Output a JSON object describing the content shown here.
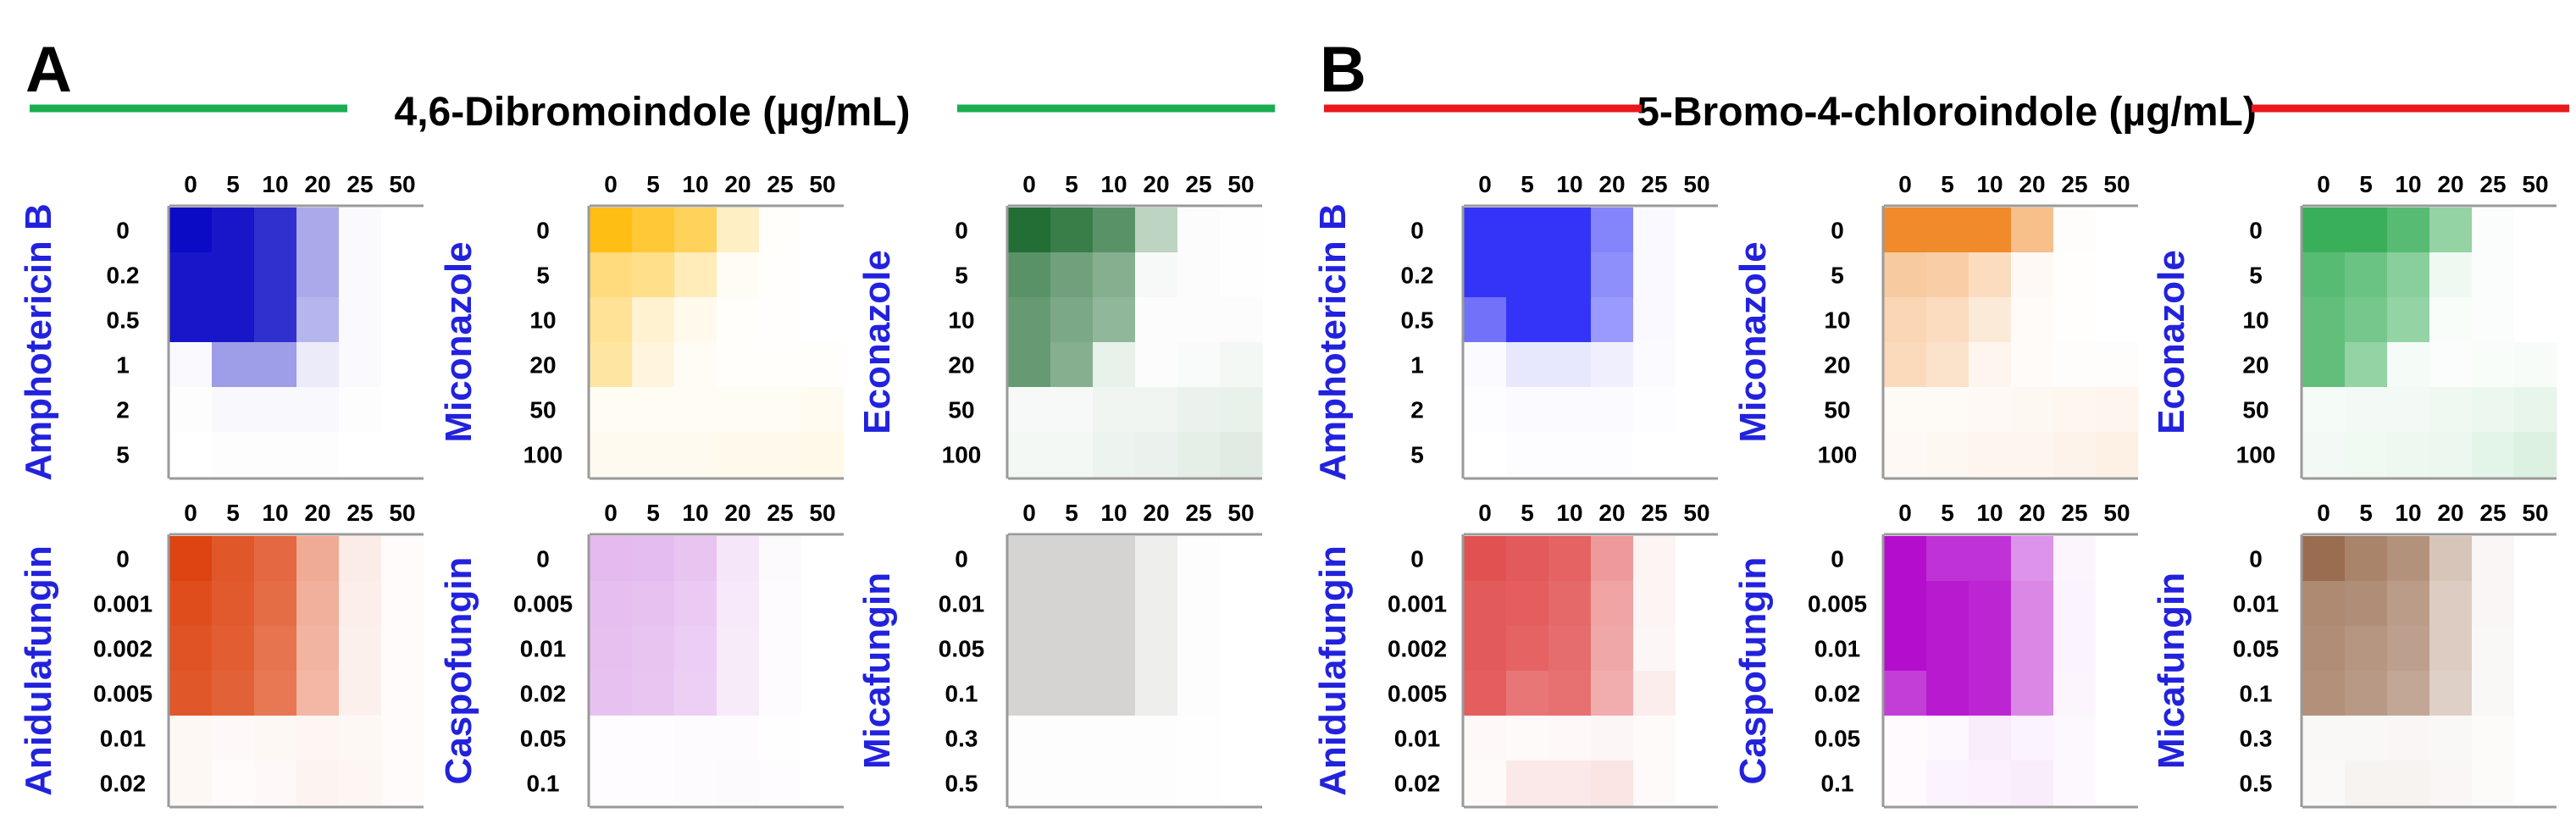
{
  "panels": [
    {
      "letter": "A",
      "compound": "4,6-Dibromoindole (µg/mL)",
      "rule_color": "#1aae50",
      "columns": [
        "0",
        "5",
        "10",
        "20",
        "25",
        "50"
      ],
      "charts": [
        {
          "drug": "Amphotericin B",
          "rows": [
            "0",
            "0.2",
            "0.5",
            "1",
            "2",
            "5"
          ],
          "color": "#0b0bc6",
          "values": [
            [
              1,
              0.95,
              0.85,
              0.35,
              0.02,
              0
            ],
            [
              0.95,
              0.95,
              0.85,
              0.35,
              0.02,
              0
            ],
            [
              0.95,
              0.95,
              0.85,
              0.3,
              0.02,
              0
            ],
            [
              0.02,
              0.4,
              0.4,
              0.08,
              0.02,
              0
            ],
            [
              0.01,
              0.03,
              0.03,
              0.03,
              0.01,
              0
            ],
            [
              0,
              0.01,
              0.01,
              0.01,
              0,
              0
            ]
          ]
        },
        {
          "drug": "Miconazole",
          "rows": [
            "0",
            "5",
            "10",
            "20",
            "50",
            "100"
          ],
          "color": "#ffbe14",
          "values": [
            [
              1,
              0.85,
              0.7,
              0.25,
              0.02,
              0
            ],
            [
              0.55,
              0.5,
              0.3,
              0.05,
              0.01,
              0
            ],
            [
              0.45,
              0.2,
              0.08,
              0.02,
              0.01,
              0
            ],
            [
              0.4,
              0.15,
              0.04,
              0.02,
              0.02,
              0.02
            ],
            [
              0.05,
              0.05,
              0.05,
              0.05,
              0.05,
              0.06
            ],
            [
              0.07,
              0.07,
              0.07,
              0.08,
              0.08,
              0.09
            ]
          ]
        },
        {
          "drug": "Econazole",
          "rows": [
            "0",
            "5",
            "10",
            "20",
            "50",
            "100"
          ],
          "color": "#236e35",
          "values": [
            [
              1,
              0.9,
              0.75,
              0.3,
              0.02,
              0.01
            ],
            [
              0.75,
              0.65,
              0.55,
              0.04,
              0.02,
              0.01
            ],
            [
              0.7,
              0.6,
              0.5,
              0.02,
              0.02,
              0.02
            ],
            [
              0.7,
              0.55,
              0.1,
              0.02,
              0.03,
              0.05
            ],
            [
              0.04,
              0.04,
              0.07,
              0.07,
              0.09,
              0.1
            ],
            [
              0.05,
              0.05,
              0.08,
              0.09,
              0.12,
              0.14
            ]
          ]
        },
        {
          "drug": "Anidulafungin",
          "rows": [
            "0",
            "0.001",
            "0.002",
            "0.005",
            "0.01",
            "0.02"
          ],
          "color": "#dd4411",
          "values": [
            [
              1,
              0.9,
              0.8,
              0.45,
              0.1,
              0.02
            ],
            [
              0.95,
              0.88,
              0.78,
              0.42,
              0.09,
              0.02
            ],
            [
              0.92,
              0.86,
              0.74,
              0.4,
              0.08,
              0.02
            ],
            [
              0.9,
              0.84,
              0.72,
              0.38,
              0.08,
              0.02
            ],
            [
              0.04,
              0.03,
              0.04,
              0.05,
              0.04,
              0.02
            ],
            [
              0.04,
              0.02,
              0.03,
              0.06,
              0.05,
              0.02
            ]
          ]
        },
        {
          "drug": "Caspofungin",
          "rows": [
            "0",
            "0.005",
            "0.01",
            "0.02",
            "0.05",
            "0.1"
          ],
          "color": "#d99ce8",
          "values": [
            [
              0.7,
              0.68,
              0.6,
              0.25,
              0.05,
              0
            ],
            [
              0.66,
              0.62,
              0.55,
              0.22,
              0.04,
              0
            ],
            [
              0.64,
              0.6,
              0.5,
              0.2,
              0.04,
              0
            ],
            [
              0.62,
              0.58,
              0.48,
              0.2,
              0.04,
              0
            ],
            [
              0.03,
              0.03,
              0.04,
              0.04,
              0.02,
              0
            ],
            [
              0.03,
              0.03,
              0.04,
              0.05,
              0.03,
              0
            ]
          ]
        },
        {
          "drug": "Micafungin",
          "rows": [
            "0",
            "0.01",
            "0.05",
            "0.1",
            "0.3",
            "0.5"
          ],
          "color": "#d5d4d2",
          "values": [
            [
              1,
              1,
              1,
              0.4,
              0.04,
              0
            ],
            [
              1,
              1,
              1,
              0.4,
              0.04,
              0
            ],
            [
              1,
              1,
              1,
              0.4,
              0.04,
              0
            ],
            [
              1,
              1,
              1,
              0.4,
              0.04,
              0
            ],
            [
              0.05,
              0.05,
              0.05,
              0.05,
              0.03,
              0
            ],
            [
              0.04,
              0.04,
              0.05,
              0.05,
              0.03,
              0
            ]
          ]
        }
      ]
    },
    {
      "letter": "B",
      "compound": "5-Bromo-4-chloroindole (µg/mL)",
      "rule_color": "#e8181c",
      "columns": [
        "0",
        "5",
        "10",
        "20",
        "25",
        "50"
      ],
      "charts": [
        {
          "drug": "Amphotericin B",
          "rows": [
            "0",
            "0.2",
            "0.5",
            "1",
            "2",
            "5"
          ],
          "color": "#3434f8",
          "values": [
            [
              1,
              1,
              1,
              0.6,
              0.03,
              0
            ],
            [
              1,
              1,
              1,
              0.55,
              0.03,
              0
            ],
            [
              0.7,
              1,
              1,
              0.5,
              0.03,
              0
            ],
            [
              0.02,
              0.12,
              0.12,
              0.08,
              0.02,
              0
            ],
            [
              0.01,
              0.02,
              0.02,
              0.02,
              0.01,
              0
            ],
            [
              0,
              0.01,
              0.01,
              0.01,
              0,
              0
            ]
          ]
        },
        {
          "drug": "Miconazole",
          "rows": [
            "0",
            "5",
            "10",
            "20",
            "50",
            "100"
          ],
          "color": "#f08a2a",
          "values": [
            [
              1,
              1,
              1,
              0.55,
              0.02,
              0
            ],
            [
              0.45,
              0.42,
              0.3,
              0.05,
              0.01,
              0
            ],
            [
              0.35,
              0.3,
              0.18,
              0.03,
              0.01,
              0
            ],
            [
              0.32,
              0.25,
              0.08,
              0.03,
              0.02,
              0.02
            ],
            [
              0.04,
              0.04,
              0.05,
              0.06,
              0.07,
              0.08
            ],
            [
              0.05,
              0.06,
              0.08,
              0.08,
              0.1,
              0.12
            ]
          ]
        },
        {
          "drug": "Econazole",
          "rows": [
            "0",
            "5",
            "10",
            "20",
            "50",
            "100"
          ],
          "color": "#3aaf5a",
          "values": [
            [
              1,
              1,
              0.85,
              0.55,
              0.02,
              0
            ],
            [
              0.85,
              0.75,
              0.6,
              0.08,
              0.02,
              0
            ],
            [
              0.8,
              0.7,
              0.55,
              0.03,
              0.02,
              0
            ],
            [
              0.8,
              0.55,
              0.05,
              0.02,
              0.03,
              0.04
            ],
            [
              0.05,
              0.06,
              0.06,
              0.08,
              0.1,
              0.12
            ],
            [
              0.06,
              0.07,
              0.09,
              0.1,
              0.14,
              0.18
            ]
          ]
        },
        {
          "drug": "Anidulafungin",
          "rows": [
            "0",
            "0.001",
            "0.002",
            "0.005",
            "0.01",
            "0.02"
          ],
          "color": "#e04848",
          "values": [
            [
              0.95,
              0.9,
              0.85,
              0.55,
              0.06,
              0
            ],
            [
              0.9,
              0.88,
              0.82,
              0.5,
              0.06,
              0
            ],
            [
              0.9,
              0.85,
              0.8,
              0.48,
              0.05,
              0
            ],
            [
              0.88,
              0.75,
              0.78,
              0.45,
              0.1,
              0
            ],
            [
              0.04,
              0.03,
              0.04,
              0.05,
              0.03,
              0
            ],
            [
              0.03,
              0.12,
              0.12,
              0.15,
              0.03,
              0
            ]
          ]
        },
        {
          "drug": "Caspofungin",
          "rows": [
            "0",
            "0.005",
            "0.01",
            "0.02",
            "0.05",
            "0.1"
          ],
          "color": "#b40ecd",
          "values": [
            [
              1,
              0.85,
              0.85,
              0.45,
              0.04,
              0
            ],
            [
              1,
              0.95,
              0.9,
              0.5,
              0.05,
              0
            ],
            [
              1,
              0.95,
              0.9,
              0.5,
              0.05,
              0
            ],
            [
              0.8,
              0.95,
              0.9,
              0.5,
              0.04,
              0
            ],
            [
              0.02,
              0.03,
              0.08,
              0.05,
              0.03,
              0
            ],
            [
              0.02,
              0.05,
              0.06,
              0.08,
              0.03,
              0
            ]
          ]
        },
        {
          "drug": "Micafungin",
          "rows": [
            "0",
            "0.01",
            "0.05",
            "0.1",
            "0.3",
            "0.5"
          ],
          "color": "#9a6d50",
          "values": [
            [
              1,
              0.85,
              0.75,
              0.4,
              0.06,
              0
            ],
            [
              0.8,
              0.78,
              0.68,
              0.35,
              0.06,
              0
            ],
            [
              0.78,
              0.72,
              0.66,
              0.35,
              0.05,
              0
            ],
            [
              0.76,
              0.7,
              0.6,
              0.32,
              0.05,
              0
            ],
            [
              0.05,
              0.05,
              0.06,
              0.05,
              0.03,
              0
            ],
            [
              0.04,
              0.08,
              0.08,
              0.06,
              0.03,
              0
            ]
          ]
        }
      ]
    }
  ],
  "chart_data": {
    "type": "heatmap",
    "note": "12 checkerboard heatmaps; values are relative growth intensity (0-1) read from cell shading",
    "x_axis": "indole concentration (µg/mL): 0, 5, 10, 20, 25, 50",
    "panels": [
      "A: 4,6-Dibromoindole (µg/mL)",
      "B: 5-Bromo-4-chloroindole (µg/mL)"
    ]
  }
}
